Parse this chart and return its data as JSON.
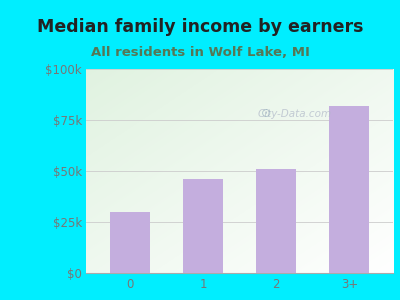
{
  "title": "Median family income by earners",
  "subtitle": "All residents in Wolf Lake, MI",
  "categories": [
    "0",
    "1",
    "2",
    "3+"
  ],
  "values": [
    30000,
    46000,
    51000,
    82000
  ],
  "bar_color": "#c4aede",
  "ylim": [
    0,
    100000
  ],
  "yticks": [
    0,
    25000,
    50000,
    75000,
    100000
  ],
  "ytick_labels": [
    "$0",
    "$25k",
    "$50k",
    "$75k",
    "$100k"
  ],
  "title_fontsize": 12.5,
  "subtitle_fontsize": 9.5,
  "title_color": "#222222",
  "subtitle_color": "#557755",
  "tick_color": "#777777",
  "background_outer": "#00eeff",
  "watermark": "City-Data.com",
  "bar_width": 0.55
}
